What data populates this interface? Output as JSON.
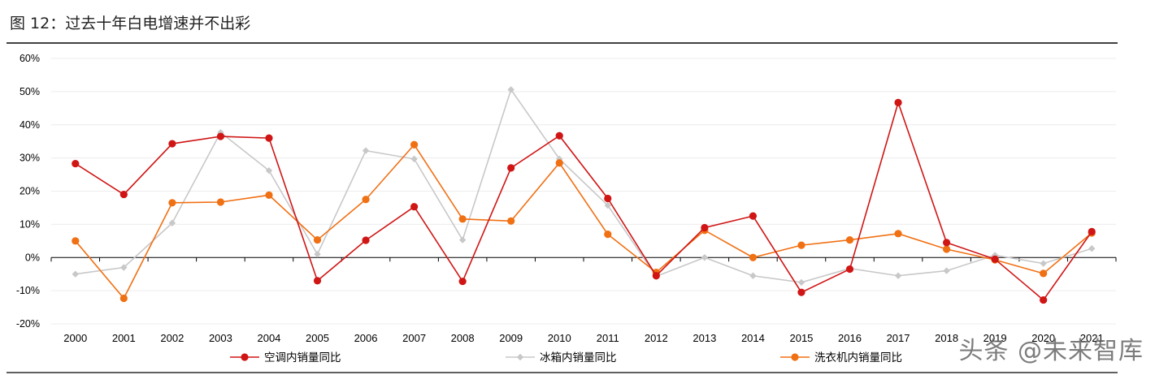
{
  "header": {
    "title": "图 12：过去十年白电增速并不出彩"
  },
  "watermark": "头条 @未来智库",
  "chart_data": {
    "type": "line",
    "title": "图 12：过去十年白电增速并不出彩",
    "xlabel": "",
    "ylabel": "",
    "ylim": [
      -0.2,
      0.6
    ],
    "yticks": [
      -0.2,
      -0.1,
      0,
      0.1,
      0.2,
      0.3,
      0.4,
      0.5,
      0.6
    ],
    "ytick_labels": [
      "-20%",
      "-10%",
      "0%",
      "10%",
      "20%",
      "30%",
      "40%",
      "50%",
      "60%"
    ],
    "categories": [
      "2000",
      "2001",
      "2002",
      "2003",
      "2004",
      "2005",
      "2006",
      "2007",
      "2008",
      "2009",
      "2010",
      "2011",
      "2012",
      "2013",
      "2014",
      "2015",
      "2016",
      "2017",
      "2018",
      "2019",
      "2020",
      "2021"
    ],
    "legend_position": "bottom",
    "grid": true,
    "series": [
      {
        "name": "空调内销量同比",
        "color": "#d01515",
        "marker": "circle",
        "values": [
          0.283,
          0.19,
          0.343,
          0.365,
          0.36,
          -0.07,
          0.052,
          0.153,
          -0.072,
          0.27,
          0.367,
          0.178,
          -0.055,
          0.09,
          0.125,
          -0.105,
          -0.035,
          0.467,
          0.045,
          -0.005,
          -0.128,
          0.078
        ]
      },
      {
        "name": "冰箱内销量同比",
        "color": "#c8c8c8",
        "marker": "diamond",
        "values": [
          -0.05,
          -0.03,
          0.104,
          0.377,
          0.262,
          0.01,
          0.322,
          0.297,
          0.053,
          0.506,
          0.297,
          0.157,
          -0.057,
          0.0,
          -0.055,
          -0.075,
          -0.033,
          -0.055,
          -0.04,
          0.007,
          -0.018,
          0.027
        ]
      },
      {
        "name": "洗衣机内销量同比",
        "color": "#f07014",
        "marker": "circle",
        "values": [
          0.05,
          -0.123,
          0.165,
          0.167,
          0.188,
          0.053,
          0.175,
          0.34,
          0.116,
          0.11,
          0.285,
          0.07,
          -0.045,
          0.082,
          0.0,
          0.037,
          0.053,
          0.072,
          0.025,
          -0.007,
          -0.048,
          0.074
        ]
      }
    ]
  }
}
